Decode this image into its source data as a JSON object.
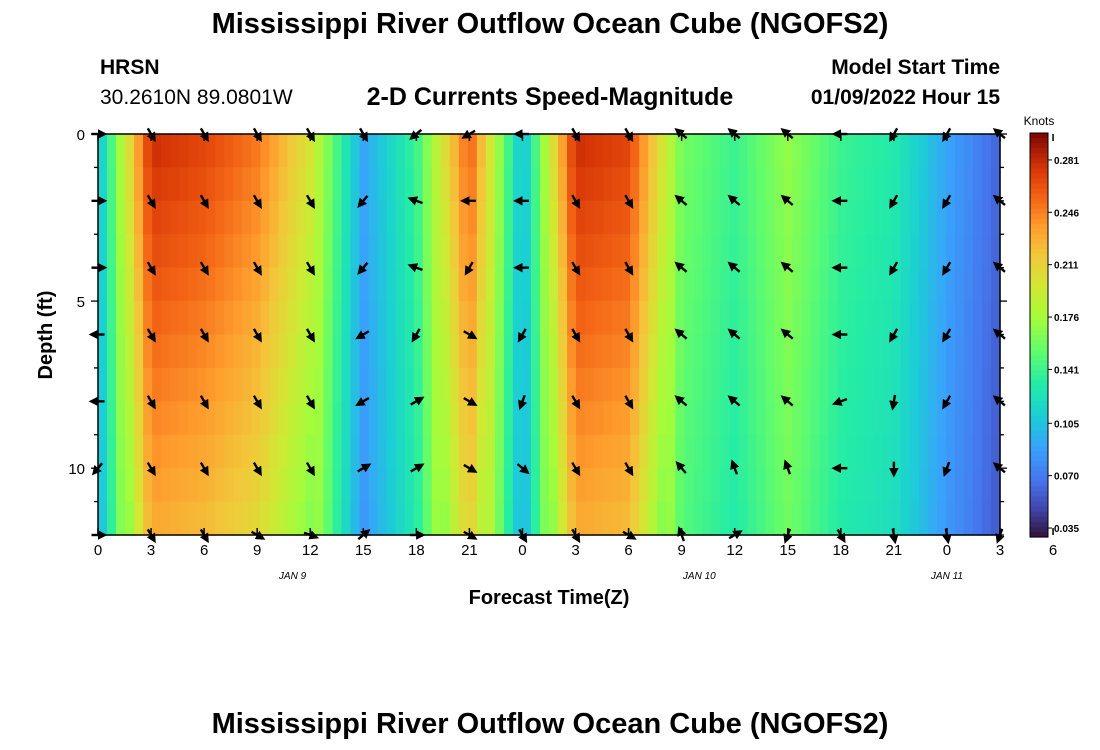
{
  "page": {
    "title": "Mississippi River Outflow Ocean Cube (NGOFS2)",
    "title_repeat": "Mississippi River Outflow Ocean Cube (NGOFS2)",
    "station": "HRSN",
    "coords": "30.2610N  89.0801W",
    "subtitle": "2-D Currents Speed-Magnitude",
    "model_label": "Model Start Time",
    "model_time": "01/09/2022 Hour 15"
  },
  "chart_data": {
    "type": "heatmap",
    "title": "2-D Currents Speed-Magnitude",
    "xlabel": "Forecast Time(Z)",
    "ylabel": "Depth (ft)",
    "x_ticks": [
      "0",
      "3",
      "6",
      "9",
      "12",
      "15",
      "18",
      "21",
      "0",
      "3",
      "6",
      "9",
      "12",
      "15",
      "18",
      "21",
      "0",
      "3",
      "6"
    ],
    "x_hours": [
      0,
      51
    ],
    "date_labels": [
      {
        "label": "JAN 9",
        "at_hour": 11
      },
      {
        "label": "JAN 10",
        "at_hour": 34
      },
      {
        "label": "JAN 11",
        "at_hour": 48
      }
    ],
    "y_ticks": [
      0,
      5,
      10
    ],
    "ylim": [
      0,
      12
    ],
    "y_inverted": true,
    "colorbar": {
      "label": "Knots",
      "ticks": [
        "0.281",
        "0.246",
        "0.211",
        "0.176",
        "0.141",
        "0.105",
        "0.070",
        "0.035"
      ],
      "range": [
        0.029,
        0.299
      ]
    },
    "time_columns": [
      0,
      3,
      6,
      9,
      12,
      15,
      18,
      21,
      24,
      27,
      30,
      33,
      36,
      39,
      42,
      45,
      48,
      51
    ],
    "depth_levels": [
      0,
      2,
      4,
      6,
      8,
      10,
      12
    ],
    "speed_profile_by_time": [
      0.1,
      0.28,
      0.27,
      0.25,
      0.2,
      0.09,
      0.14,
      0.26,
      0.1,
      0.28,
      0.27,
      0.16,
      0.14,
      0.17,
      0.14,
      0.13,
      0.09,
      0.06
    ],
    "arrow_directions_deg": [
      [
        0,
        60,
        60,
        60,
        60,
        60,
        140,
        150,
        180,
        60,
        60,
        220,
        220,
        220,
        180,
        120,
        120,
        220
      ],
      [
        0,
        60,
        60,
        60,
        60,
        130,
        200,
        180,
        180,
        60,
        60,
        220,
        220,
        220,
        180,
        120,
        120,
        220
      ],
      [
        0,
        60,
        60,
        60,
        60,
        130,
        200,
        120,
        180,
        60,
        60,
        220,
        220,
        220,
        180,
        120,
        120,
        220
      ],
      [
        180,
        60,
        60,
        60,
        60,
        150,
        120,
        30,
        120,
        60,
        60,
        220,
        220,
        220,
        180,
        120,
        120,
        220
      ],
      [
        180,
        60,
        60,
        60,
        60,
        150,
        330,
        30,
        110,
        60,
        60,
        220,
        220,
        220,
        160,
        100,
        120,
        220
      ],
      [
        130,
        60,
        60,
        60,
        60,
        330,
        330,
        30,
        40,
        60,
        60,
        230,
        250,
        250,
        180,
        90,
        110,
        220
      ],
      [
        0,
        60,
        60,
        30,
        20,
        320,
        0,
        30,
        60,
        60,
        30,
        250,
        330,
        110,
        60,
        80,
        80,
        110
      ]
    ]
  }
}
